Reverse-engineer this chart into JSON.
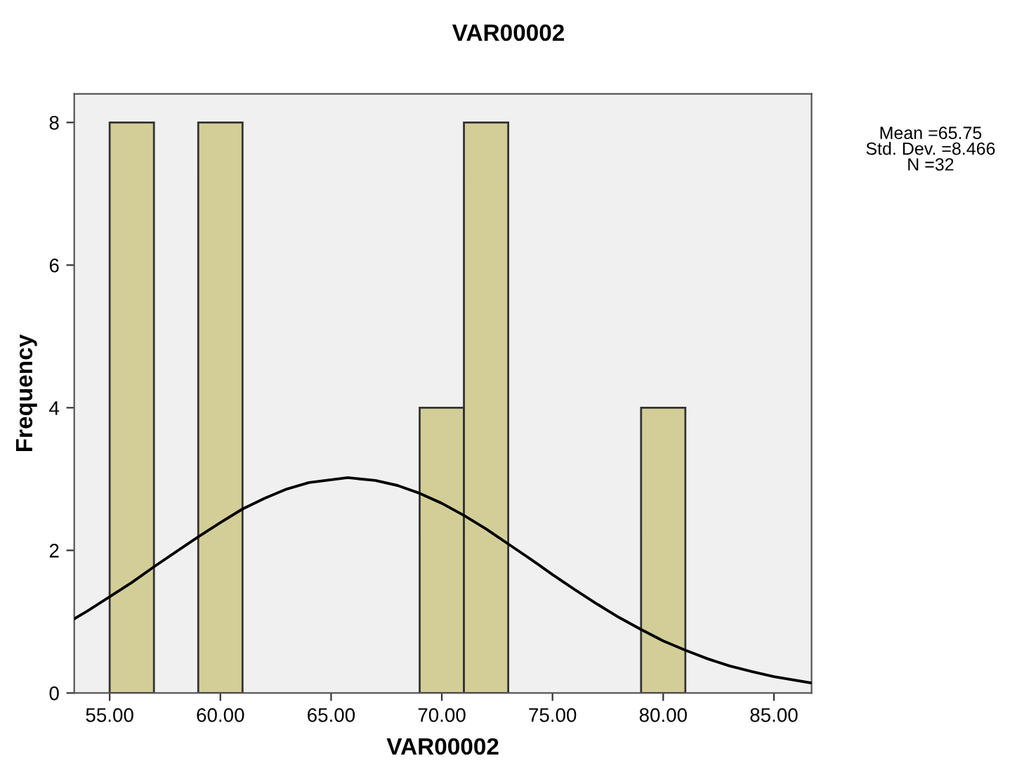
{
  "chart_data": {
    "type": "histogram",
    "title": "VAR00002",
    "xlabel": "VAR00002",
    "ylabel": "Frequency",
    "bins": [
      55,
      57,
      59,
      61,
      63,
      65,
      67,
      69,
      71,
      73,
      75,
      77,
      79,
      81
    ],
    "values": [
      8,
      0,
      8,
      0,
      0,
      0,
      0,
      4,
      8,
      0,
      0,
      0,
      4
    ],
    "color": "#d3ce97",
    "series": [
      {
        "type": "line",
        "color": "#000000",
        "x": [
          53.4,
          54,
          55,
          56,
          57,
          58,
          59,
          60,
          61,
          62,
          63,
          64,
          65.75,
          67,
          68,
          69,
          70,
          71,
          72,
          73,
          74,
          75,
          76,
          77,
          78,
          79,
          80,
          81,
          82,
          83,
          84,
          85,
          86.7
        ],
        "values": [
          1.04,
          1.15,
          1.35,
          1.55,
          1.77,
          1.98,
          2.19,
          2.39,
          2.58,
          2.73,
          2.86,
          2.95,
          3.02,
          2.98,
          2.91,
          2.8,
          2.66,
          2.49,
          2.3,
          2.09,
          1.88,
          1.66,
          1.45,
          1.25,
          1.06,
          0.89,
          0.73,
          0.6,
          0.48,
          0.38,
          0.3,
          0.23,
          0.14
        ]
      }
    ],
    "xlim": [
      53.4,
      86.7
    ],
    "xticks": [
      {
        "value": 55,
        "label": "55.00"
      },
      {
        "value": 60,
        "label": "60.00"
      },
      {
        "value": 65,
        "label": "65.00"
      },
      {
        "value": 70,
        "label": "70.00"
      },
      {
        "value": 75,
        "label": "75.00"
      },
      {
        "value": 80,
        "label": "80.00"
      },
      {
        "value": 85,
        "label": "85.00"
      }
    ],
    "ylim": [
      0,
      8.4
    ],
    "yticks": [
      0,
      2,
      4,
      6,
      8
    ],
    "annotations": [
      "Mean =65.75\nStd. Dev. =8.466\nN =32"
    ]
  }
}
